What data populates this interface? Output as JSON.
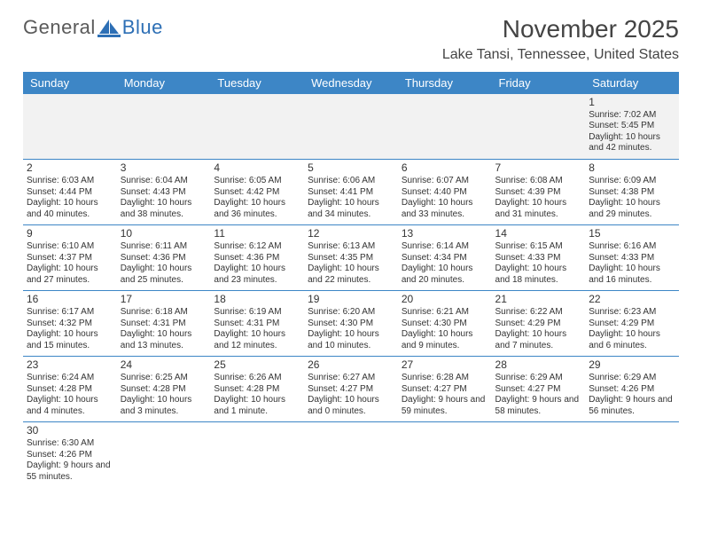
{
  "logo": {
    "word1": "General",
    "word2": "Blue"
  },
  "header": {
    "month_title": "November 2025",
    "location": "Lake Tansi, Tennessee, United States"
  },
  "colors": {
    "header_bg": "#3d86c6",
    "header_text": "#ffffff",
    "row_border": "#3d86c6",
    "alt_row_bg": "#f2f2f2",
    "text": "#333333",
    "logo_gray": "#5a5a5a",
    "logo_blue": "#2d6fb5"
  },
  "typography": {
    "month_fontsize": 28,
    "location_fontsize": 16,
    "weekday_fontsize": 13,
    "daynum_fontsize": 12,
    "cell_fontsize": 10
  },
  "calendar": {
    "type": "table",
    "columns": [
      "Sunday",
      "Monday",
      "Tuesday",
      "Wednesday",
      "Thursday",
      "Friday",
      "Saturday"
    ],
    "weeks": [
      [
        null,
        null,
        null,
        null,
        null,
        null,
        {
          "d": "1",
          "sr": "7:02 AM",
          "ss": "5:45 PM",
          "dl": "10 hours and 42 minutes."
        }
      ],
      [
        {
          "d": "2",
          "sr": "6:03 AM",
          "ss": "4:44 PM",
          "dl": "10 hours and 40 minutes."
        },
        {
          "d": "3",
          "sr": "6:04 AM",
          "ss": "4:43 PM",
          "dl": "10 hours and 38 minutes."
        },
        {
          "d": "4",
          "sr": "6:05 AM",
          "ss": "4:42 PM",
          "dl": "10 hours and 36 minutes."
        },
        {
          "d": "5",
          "sr": "6:06 AM",
          "ss": "4:41 PM",
          "dl": "10 hours and 34 minutes."
        },
        {
          "d": "6",
          "sr": "6:07 AM",
          "ss": "4:40 PM",
          "dl": "10 hours and 33 minutes."
        },
        {
          "d": "7",
          "sr": "6:08 AM",
          "ss": "4:39 PM",
          "dl": "10 hours and 31 minutes."
        },
        {
          "d": "8",
          "sr": "6:09 AM",
          "ss": "4:38 PM",
          "dl": "10 hours and 29 minutes."
        }
      ],
      [
        {
          "d": "9",
          "sr": "6:10 AM",
          "ss": "4:37 PM",
          "dl": "10 hours and 27 minutes."
        },
        {
          "d": "10",
          "sr": "6:11 AM",
          "ss": "4:36 PM",
          "dl": "10 hours and 25 minutes."
        },
        {
          "d": "11",
          "sr": "6:12 AM",
          "ss": "4:36 PM",
          "dl": "10 hours and 23 minutes."
        },
        {
          "d": "12",
          "sr": "6:13 AM",
          "ss": "4:35 PM",
          "dl": "10 hours and 22 minutes."
        },
        {
          "d": "13",
          "sr": "6:14 AM",
          "ss": "4:34 PM",
          "dl": "10 hours and 20 minutes."
        },
        {
          "d": "14",
          "sr": "6:15 AM",
          "ss": "4:33 PM",
          "dl": "10 hours and 18 minutes."
        },
        {
          "d": "15",
          "sr": "6:16 AM",
          "ss": "4:33 PM",
          "dl": "10 hours and 16 minutes."
        }
      ],
      [
        {
          "d": "16",
          "sr": "6:17 AM",
          "ss": "4:32 PM",
          "dl": "10 hours and 15 minutes."
        },
        {
          "d": "17",
          "sr": "6:18 AM",
          "ss": "4:31 PM",
          "dl": "10 hours and 13 minutes."
        },
        {
          "d": "18",
          "sr": "6:19 AM",
          "ss": "4:31 PM",
          "dl": "10 hours and 12 minutes."
        },
        {
          "d": "19",
          "sr": "6:20 AM",
          "ss": "4:30 PM",
          "dl": "10 hours and 10 minutes."
        },
        {
          "d": "20",
          "sr": "6:21 AM",
          "ss": "4:30 PM",
          "dl": "10 hours and 9 minutes."
        },
        {
          "d": "21",
          "sr": "6:22 AM",
          "ss": "4:29 PM",
          "dl": "10 hours and 7 minutes."
        },
        {
          "d": "22",
          "sr": "6:23 AM",
          "ss": "4:29 PM",
          "dl": "10 hours and 6 minutes."
        }
      ],
      [
        {
          "d": "23",
          "sr": "6:24 AM",
          "ss": "4:28 PM",
          "dl": "10 hours and 4 minutes."
        },
        {
          "d": "24",
          "sr": "6:25 AM",
          "ss": "4:28 PM",
          "dl": "10 hours and 3 minutes."
        },
        {
          "d": "25",
          "sr": "6:26 AM",
          "ss": "4:28 PM",
          "dl": "10 hours and 1 minute."
        },
        {
          "d": "26",
          "sr": "6:27 AM",
          "ss": "4:27 PM",
          "dl": "10 hours and 0 minutes."
        },
        {
          "d": "27",
          "sr": "6:28 AM",
          "ss": "4:27 PM",
          "dl": "9 hours and 59 minutes."
        },
        {
          "d": "28",
          "sr": "6:29 AM",
          "ss": "4:27 PM",
          "dl": "9 hours and 58 minutes."
        },
        {
          "d": "29",
          "sr": "6:29 AM",
          "ss": "4:26 PM",
          "dl": "9 hours and 56 minutes."
        }
      ],
      [
        {
          "d": "30",
          "sr": "6:30 AM",
          "ss": "4:26 PM",
          "dl": "9 hours and 55 minutes."
        },
        null,
        null,
        null,
        null,
        null,
        null
      ]
    ],
    "labels": {
      "sunrise": "Sunrise:",
      "sunset": "Sunset:",
      "daylight": "Daylight:"
    }
  }
}
